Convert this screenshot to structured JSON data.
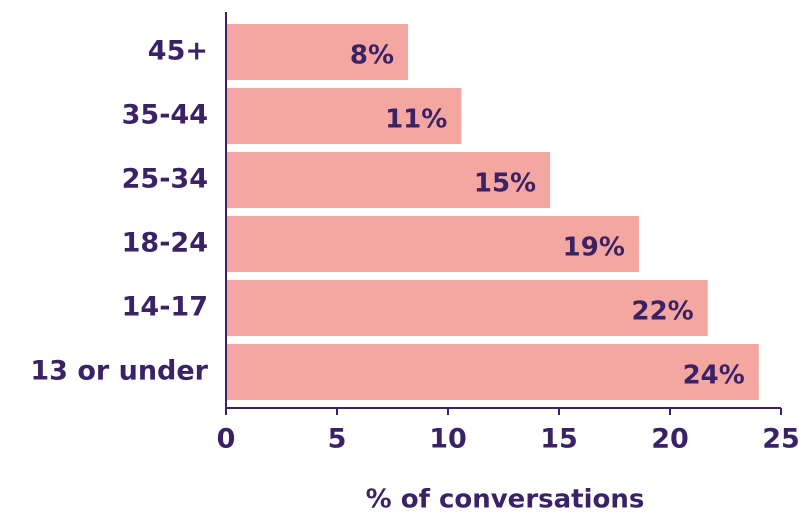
{
  "chart_data": {
    "type": "bar",
    "orientation": "horizontal",
    "categories": [
      "45+",
      "35-44",
      "25-34",
      "18-24",
      "14-17",
      "13 or under"
    ],
    "values": [
      8.2,
      10.6,
      14.6,
      18.6,
      21.7,
      24.0
    ],
    "value_labels": [
      "8%",
      "11%",
      "15%",
      "19%",
      "22%",
      "24%"
    ],
    "color": "#f4a6a0",
    "xlabel": "% of conversations",
    "xlim": [
      0,
      25
    ],
    "xticks": [
      0,
      5,
      10,
      15,
      20,
      25
    ]
  }
}
